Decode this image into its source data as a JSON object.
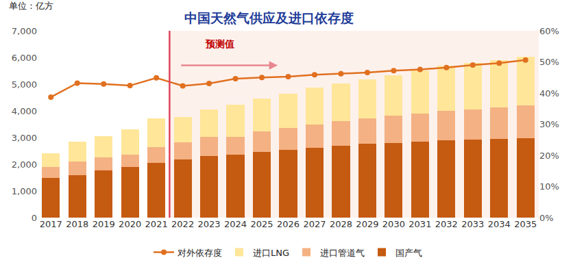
{
  "chart_data": {
    "type": "bar",
    "title": "中国天然气供应及进口依存度",
    "ylabel": "单位：亿方",
    "annotation": "预测值",
    "forecast_start": "2022",
    "stacked": true,
    "legend": "bottom",
    "grid": false,
    "categories": [
      "2017",
      "2018",
      "2019",
      "2020",
      "2021",
      "2022",
      "2023",
      "2024",
      "2025",
      "2026",
      "2027",
      "2028",
      "2029",
      "2030",
      "2031",
      "2032",
      "2033",
      "2034",
      "2035"
    ],
    "series": [
      {
        "name": "国产气",
        "type": "bar",
        "color": "#C55A11",
        "values": [
          1480,
          1600,
          1760,
          1890,
          2050,
          2180,
          2300,
          2350,
          2450,
          2550,
          2620,
          2700,
          2760,
          2800,
          2850,
          2900,
          2920,
          2940,
          2970
        ]
      },
      {
        "name": "进口管道气",
        "type": "bar",
        "color": "#F4B183",
        "values": [
          420,
          500,
          500,
          480,
          590,
          650,
          720,
          680,
          780,
          820,
          880,
          920,
          960,
          1020,
          1060,
          1100,
          1130,
          1180,
          1240
        ]
      },
      {
        "name": "进口LNG",
        "type": "bar",
        "color": "#FFE699",
        "values": [
          500,
          740,
          800,
          930,
          1080,
          950,
          1030,
          1210,
          1230,
          1280,
          1360,
          1400,
          1460,
          1520,
          1610,
          1690,
          1750,
          1780,
          1810
        ]
      },
      {
        "name": "对外依存度",
        "type": "line",
        "axis": "y2",
        "color": "#E07020",
        "marker": "circle",
        "values": [
          38.7,
          43.2,
          42.9,
          42.4,
          44.9,
          42.3,
          43.1,
          44.6,
          45.0,
          45.3,
          45.9,
          46.2,
          46.6,
          47.2,
          47.6,
          48.2,
          49.0,
          49.6,
          50.6
        ]
      }
    ],
    "ylim": [
      0,
      7000
    ],
    "yticks": [
      0,
      {
        "value": 1000,
        "label": "1,000"
      },
      {
        "value": 2000,
        "label": "2,000"
      },
      {
        "value": 3000,
        "label": "3,000"
      },
      {
        "value": 4000,
        "label": "4,000"
      },
      {
        "value": 5000,
        "label": "5,000"
      },
      {
        "value": 6000,
        "label": "6,000"
      },
      {
        "value": 7000,
        "label": "7,000"
      }
    ],
    "y2lim": [
      0,
      60
    ],
    "y2ticks": [
      {
        "value": 0,
        "label": "0%"
      },
      {
        "value": 10,
        "label": "10%"
      },
      {
        "value": 20,
        "label": "20%"
      },
      {
        "value": 30,
        "label": "30%"
      },
      {
        "value": 40,
        "label": "40%"
      },
      {
        "value": 50,
        "label": "50%"
      },
      {
        "value": 60,
        "label": "60%"
      }
    ]
  }
}
